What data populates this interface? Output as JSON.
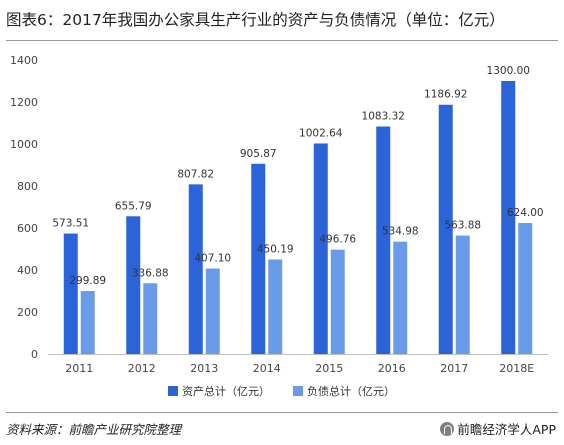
{
  "title": "图表6：2017年我国办公家具生产行业的资产与负债情况（单位：亿元）",
  "footer": {
    "source": "资料来源：前瞻产业研究院整理",
    "brand": "前瞻经济学人APP"
  },
  "colors": {
    "asset": "#2b63d9",
    "liability": "#6a9be8",
    "axis": "#bfbfbf"
  },
  "chart_data": {
    "type": "bar",
    "categories": [
      "2011",
      "2012",
      "2013",
      "2014",
      "2015",
      "2016",
      "2017",
      "2018E"
    ],
    "series": [
      {
        "name": "资产总计（亿元）",
        "values": [
          573.51,
          655.79,
          807.82,
          905.87,
          1002.64,
          1083.32,
          1186.92,
          1300.0
        ],
        "labels": [
          "573.51",
          "655.79",
          "807.82",
          "905.87",
          "1002.64",
          "1083.32",
          "1186.92",
          "1300.00"
        ]
      },
      {
        "name": "负债总计（亿元）",
        "values": [
          299.89,
          336.88,
          407.1,
          450.19,
          496.76,
          534.98,
          563.88,
          624.0
        ],
        "labels": [
          "299.89",
          "336.88",
          "407.10",
          "450.19",
          "496.76",
          "534.98",
          "563.88",
          "624.00"
        ]
      }
    ],
    "yticks": [
      "0",
      "200",
      "400",
      "600",
      "800",
      "1000",
      "1200",
      "1400"
    ],
    "ylim": [
      0,
      1400
    ],
    "grid": false,
    "legend": "bottom"
  }
}
